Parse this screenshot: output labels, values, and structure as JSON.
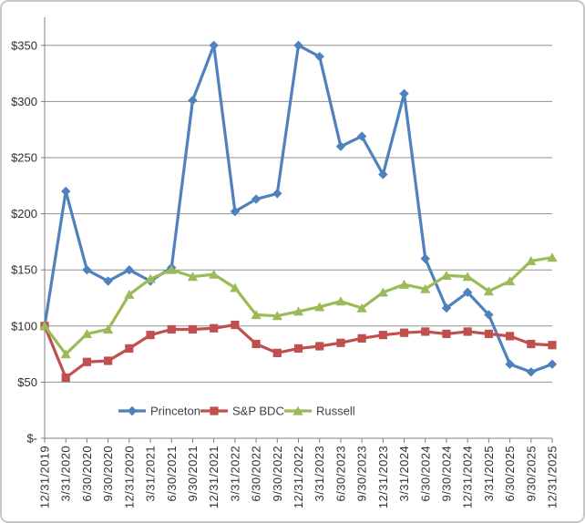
{
  "figure": {
    "kind": "excel-style line chart",
    "background": "#ffffff",
    "border_color": "#c6c6c6"
  },
  "chart_data": {
    "type": "line",
    "title": "",
    "xlabel": "",
    "ylabel": "",
    "grid": true,
    "legend_position": "bottom-center",
    "ylim": [
      0,
      375
    ],
    "y_tick_values": [
      0,
      50,
      100,
      150,
      200,
      250,
      300,
      350
    ],
    "y_tick_labels": [
      "$-",
      "$50",
      "$100",
      "$150",
      "$200",
      "$250",
      "$300",
      "$350"
    ],
    "categories": [
      "12/31/2019",
      "3/31/2020",
      "6/30/2020",
      "9/30/2020",
      "12/31/2020",
      "3/31/2021",
      "6/30/2021",
      "9/30/2021",
      "12/31/2021",
      "3/31/2022",
      "6/30/2022",
      "9/30/2022",
      "12/31/2022",
      "3/31/2023",
      "6/30/2023",
      "9/30/2023",
      "12/31/2023",
      "3/31/2024",
      "6/30/2024",
      "9/30/2024",
      "12/31/2024",
      "3/31/2025",
      "6/30/2025",
      "9/30/2025",
      "12/31/2025"
    ],
    "series": [
      {
        "name": "Princeton",
        "color": "#4f81bd",
        "marker": "diamond",
        "values": [
          100,
          220,
          150,
          140,
          150,
          140,
          152,
          301,
          350,
          202,
          213,
          218,
          350,
          340,
          260,
          269,
          235,
          307,
          160,
          116,
          130,
          110,
          66,
          59,
          66
        ]
      },
      {
        "name": "S&P BDC",
        "color": "#c0504d",
        "marker": "square",
        "values": [
          100,
          54,
          68,
          69,
          80,
          92,
          97,
          97,
          98,
          101,
          84,
          76,
          80,
          82,
          85,
          89,
          92,
          94,
          95,
          93,
          95,
          93,
          91,
          84,
          83
        ]
      },
      {
        "name": "Russell",
        "color": "#9bbb59",
        "marker": "triangle",
        "values": [
          100,
          75,
          93,
          97,
          128,
          142,
          150,
          144,
          146,
          134,
          110,
          109,
          113,
          117,
          122,
          116,
          130,
          137,
          133,
          145,
          144,
          131,
          140,
          158,
          161
        ]
      }
    ],
    "colors": {
      "gridline": "#919191",
      "axis": "#808080",
      "tick_text": "#303030",
      "legend_text": "#3f3f3f"
    }
  }
}
